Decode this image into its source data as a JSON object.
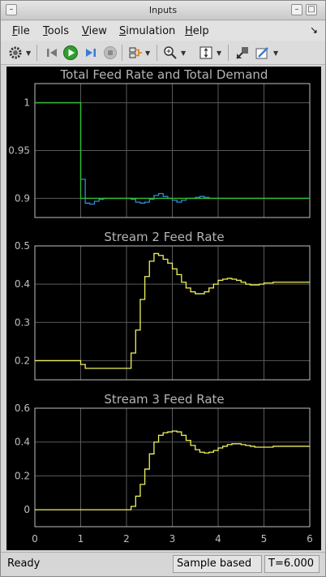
{
  "window": {
    "title": "Inputs"
  },
  "menu": [
    {
      "label": "File",
      "mnemonic": "F",
      "rest": "ile"
    },
    {
      "label": "Tools",
      "mnemonic": "T",
      "rest": "ools"
    },
    {
      "label": "View",
      "mnemonic": "V",
      "rest": "iew"
    },
    {
      "label": "Simulation",
      "mnemonic": "S",
      "rest": "imulation"
    },
    {
      "label": "Help",
      "mnemonic": "H",
      "rest": "elp"
    }
  ],
  "toolbar": {
    "icons": [
      "gear-icon",
      "step-back-icon",
      "run-icon",
      "step-forward-icon",
      "stop-icon",
      "signal-select-icon",
      "zoom-icon",
      "scale-axes-icon",
      "highlight-simulink-block-icon",
      "style-icon"
    ]
  },
  "status": {
    "ready": "Ready",
    "mode": "Sample based",
    "time": "T=6.000"
  },
  "colors": {
    "background": "#000000",
    "grid": "#5a5a5a",
    "axis": "#bfbfbf",
    "title_text": "#b4b4b4",
    "trace_blue": "#2e8cd8",
    "trace_yellow": "#f0f060",
    "trace_green": "#33bb33"
  },
  "chart_data": [
    {
      "type": "line",
      "title": "Total Feed Rate and Total Demand",
      "xlim": [
        0,
        6
      ],
      "ylim": [
        0.88,
        1.02
      ],
      "yticks": [
        "1",
        "0.95",
        "0.9"
      ],
      "ytick_values": [
        1,
        0.95,
        0.9
      ],
      "grid": true,
      "series": [
        {
          "color": "#2e8cd8",
          "x": [
            0,
            1.0,
            1.0,
            1.05,
            1.1,
            1.2,
            1.3,
            1.4,
            1.5,
            1.6,
            2.1,
            2.2,
            2.3,
            2.4,
            2.5,
            2.6,
            2.7,
            2.8,
            2.9,
            3.0,
            3.1,
            3.2,
            3.3,
            3.5,
            3.6,
            3.7,
            3.8,
            3.9,
            4.0,
            6.0
          ],
          "y": [
            1.0,
            1.0,
            0.92,
            0.92,
            0.895,
            0.894,
            0.897,
            0.899,
            0.9,
            0.9,
            0.899,
            0.896,
            0.895,
            0.896,
            0.899,
            0.903,
            0.905,
            0.902,
            0.9,
            0.898,
            0.896,
            0.898,
            0.9,
            0.901,
            0.902,
            0.901,
            0.9,
            0.9,
            0.9,
            0.9
          ]
        },
        {
          "color": "#33bb33",
          "x": [
            0,
            1.0,
            1.0,
            6.0
          ],
          "y": [
            1.0,
            1.0,
            0.9,
            0.9
          ]
        }
      ]
    },
    {
      "type": "line",
      "title": "Stream 2 Feed Rate",
      "xlim": [
        0,
        6
      ],
      "ylim": [
        0.15,
        0.5
      ],
      "yticks": [
        "0.5",
        "0.4",
        "0.3",
        "0.2"
      ],
      "ytick_values": [
        0.5,
        0.4,
        0.3,
        0.2
      ],
      "grid": true,
      "series": [
        {
          "color": "#f0f060",
          "x": [
            0,
            1.0,
            1.1,
            1.7,
            1.9,
            2.0,
            2.1,
            2.2,
            2.3,
            2.4,
            2.5,
            2.6,
            2.7,
            2.8,
            2.9,
            3.0,
            3.1,
            3.2,
            3.3,
            3.4,
            3.5,
            3.6,
            3.7,
            3.8,
            3.9,
            4.0,
            4.1,
            4.2,
            4.3,
            4.4,
            4.5,
            4.6,
            4.7,
            4.8,
            4.9,
            5.0,
            5.2,
            5.4,
            5.6,
            6.0
          ],
          "y": [
            0.2,
            0.19,
            0.18,
            0.18,
            0.18,
            0.18,
            0.22,
            0.28,
            0.36,
            0.42,
            0.46,
            0.48,
            0.475,
            0.465,
            0.455,
            0.44,
            0.425,
            0.405,
            0.39,
            0.38,
            0.375,
            0.375,
            0.38,
            0.39,
            0.4,
            0.41,
            0.413,
            0.415,
            0.413,
            0.41,
            0.405,
            0.4,
            0.398,
            0.398,
            0.4,
            0.403,
            0.405,
            0.405,
            0.405,
            0.405
          ]
        }
      ]
    },
    {
      "type": "line",
      "title": "Stream 3 Feed Rate",
      "xlim": [
        0,
        6
      ],
      "ylim": [
        -0.1,
        0.6
      ],
      "yticks": [
        "0.6",
        "0.4",
        "0.2",
        "0"
      ],
      "ytick_values": [
        0.6,
        0.4,
        0.2,
        0
      ],
      "xticks": [
        "0",
        "1",
        "2",
        "3",
        "4",
        "5",
        "6"
      ],
      "xtick_values": [
        0,
        1,
        2,
        3,
        4,
        5,
        6
      ],
      "grid": true,
      "series": [
        {
          "color": "#f0f060",
          "x": [
            0,
            2.0,
            2.1,
            2.2,
            2.3,
            2.4,
            2.5,
            2.6,
            2.7,
            2.8,
            2.9,
            3.0,
            3.1,
            3.2,
            3.3,
            3.4,
            3.5,
            3.6,
            3.7,
            3.8,
            3.9,
            4.0,
            4.1,
            4.2,
            4.3,
            4.4,
            4.5,
            4.6,
            4.7,
            4.8,
            4.9,
            5.0,
            5.2,
            5.4,
            5.6,
            6.0
          ],
          "y": [
            0.0,
            0.0,
            0.02,
            0.08,
            0.15,
            0.24,
            0.33,
            0.4,
            0.44,
            0.455,
            0.46,
            0.465,
            0.46,
            0.44,
            0.41,
            0.38,
            0.355,
            0.34,
            0.335,
            0.34,
            0.35,
            0.365,
            0.375,
            0.385,
            0.39,
            0.39,
            0.385,
            0.38,
            0.375,
            0.37,
            0.37,
            0.37,
            0.375,
            0.375,
            0.375,
            0.375
          ]
        }
      ]
    }
  ]
}
